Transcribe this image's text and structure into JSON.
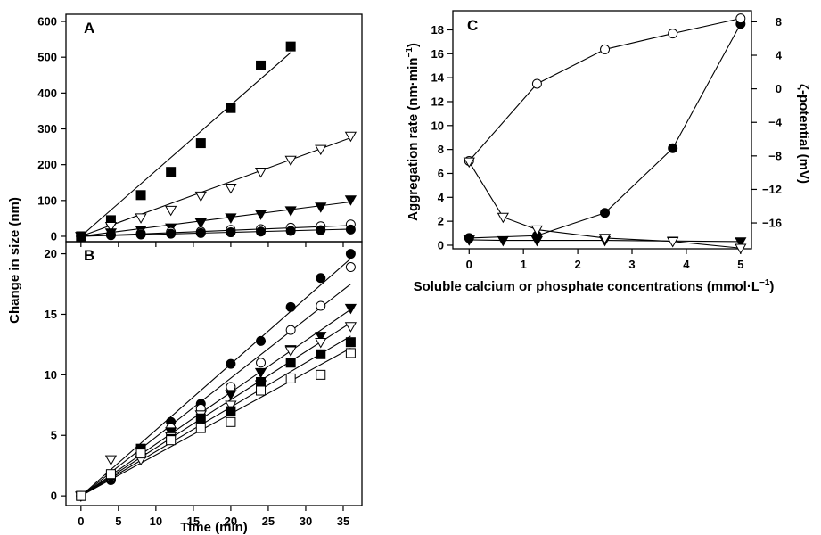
{
  "figure": {
    "panel_a_label": "A",
    "panel_b_label": "B",
    "panel_c_label": "C",
    "shared_ylabel": "Change in size (nm)",
    "shared_xlabel": "Time (min)",
    "c_ylabel_left_main": "Aggregation rate (nm",
    "c_ylabel_left_dot": "·",
    "c_ylabel_left_unit": "min",
    "c_ylabel_left_exp": "−1",
    "c_ylabel_left_close": ")",
    "c_ylabel_right": "ζ-potential (mV)",
    "c_xlabel_main": "Soluble calcium or phosphate concentrations (mmol",
    "c_xlabel_dot": "·",
    "c_xlabel_unit": "L",
    "c_xlabel_exp": "−1",
    "c_xlabel_close": ")"
  },
  "chart_data": [
    {
      "panel": "A",
      "type": "scatter",
      "title": "",
      "xlabel": "",
      "ylabel": "Change in size (nm)",
      "xlim": [
        -2,
        37.5
      ],
      "ylim": [
        -15,
        620
      ],
      "xticks": [
        0,
        5,
        10,
        15,
        20,
        25,
        30,
        35
      ],
      "yticks": [
        0,
        100,
        200,
        300,
        400,
        500,
        600
      ],
      "ytick_labels": [
        "0",
        "100",
        "200",
        "300",
        "400",
        "500",
        "600"
      ],
      "grid": false,
      "series": [
        {
          "marker": "filled-square",
          "x": [
            0,
            4,
            8,
            12,
            16,
            20,
            24,
            28
          ],
          "y": [
            0,
            45,
            115,
            180,
            260,
            358,
            477,
            530
          ],
          "fit": [
            [
              0,
              0
            ],
            [
              28,
              513
            ]
          ]
        },
        {
          "marker": "open-triangle-down",
          "x": [
            0,
            4,
            8,
            12,
            16,
            20,
            24,
            28,
            32,
            36
          ],
          "y": [
            0,
            28,
            52,
            73,
            113,
            135,
            180,
            213,
            243,
            280
          ],
          "fit": [
            [
              0,
              0
            ],
            [
              36,
              275
            ]
          ]
        },
        {
          "marker": "filled-triangle-down",
          "x": [
            0,
            4,
            8,
            12,
            16,
            20,
            24,
            28,
            32,
            36
          ],
          "y": [
            0,
            10,
            18,
            24,
            38,
            52,
            62,
            72,
            82,
            102
          ],
          "fit": [
            [
              0,
              0
            ],
            [
              36,
              96
            ]
          ]
        },
        {
          "marker": "open-circle",
          "x": [
            0,
            4,
            8,
            12,
            16,
            20,
            24,
            28,
            32,
            36
          ],
          "y": [
            0,
            5,
            8,
            12,
            13,
            18,
            20,
            24,
            28,
            33
          ],
          "fit": [
            [
              0,
              0
            ],
            [
              36,
              30
            ]
          ]
        },
        {
          "marker": "filled-circle",
          "x": [
            0,
            4,
            8,
            12,
            16,
            20,
            24,
            28,
            32,
            36
          ],
          "y": [
            0,
            3,
            5,
            7,
            9,
            11,
            13,
            15,
            17,
            19
          ],
          "fit": [
            [
              0,
              0
            ],
            [
              36,
              20
            ]
          ]
        }
      ]
    },
    {
      "panel": "B",
      "type": "scatter",
      "title": "",
      "xlabel": "Time (min)",
      "ylabel": "Change in size (nm)",
      "xlim": [
        -2,
        37.5
      ],
      "ylim": [
        -0.8,
        21
      ],
      "xticks": [
        0,
        5,
        10,
        15,
        20,
        25,
        30,
        35
      ],
      "xtick_labels": [
        "0",
        "5",
        "10",
        "15",
        "20",
        "25",
        "30",
        "35"
      ],
      "yticks": [
        0,
        5,
        10,
        15,
        20
      ],
      "ytick_labels": [
        "0",
        "5",
        "10",
        "15",
        "20"
      ],
      "grid": false,
      "series": [
        {
          "marker": "filled-circle",
          "x": [
            0,
            4,
            8,
            12,
            16,
            20,
            24,
            28,
            32,
            36
          ],
          "y": [
            0,
            1.3,
            3.5,
            6.1,
            7.6,
            10.9,
            12.8,
            15.6,
            18.0,
            20.0
          ],
          "fit": [
            [
              0,
              0
            ],
            [
              36,
              19.6
            ]
          ]
        },
        {
          "marker": "open-circle",
          "x": [
            0,
            4,
            8,
            12,
            16,
            20,
            24,
            28,
            32,
            36
          ],
          "y": [
            0,
            1.5,
            3.8,
            5.6,
            7.2,
            9.0,
            11.0,
            13.7,
            15.7,
            18.9
          ],
          "fit": [
            [
              0,
              0
            ],
            [
              36,
              17.5
            ]
          ]
        },
        {
          "marker": "filled-triangle-down",
          "x": [
            0,
            4,
            8,
            12,
            16,
            20,
            24,
            28,
            32,
            36
          ],
          "y": [
            0,
            1.4,
            3.2,
            5.3,
            6.7,
            8.4,
            10.2,
            12.1,
            13.2,
            15.5
          ],
          "fit": [
            [
              0,
              0
            ],
            [
              36,
              15.4
            ]
          ]
        },
        {
          "marker": "open-triangle-down",
          "x": [
            0,
            4,
            8,
            12,
            16,
            20,
            24,
            28,
            32,
            36
          ],
          "y": [
            0,
            3.0,
            3.0,
            4.9,
            6.7,
            7.5,
            9.2,
            12.0,
            12.7,
            14.0
          ],
          "fit": [
            [
              0,
              0
            ],
            [
              36,
              14.3
            ]
          ]
        },
        {
          "marker": "filled-square",
          "x": [
            0,
            4,
            8,
            12,
            16,
            20,
            24,
            28,
            32,
            36
          ],
          "y": [
            0,
            1.7,
            3.9,
            4.7,
            6.4,
            7.0,
            9.4,
            11.0,
            11.7,
            12.7
          ],
          "fit": [
            [
              0,
              0
            ],
            [
              36,
              13.2
            ]
          ]
        },
        {
          "marker": "open-square",
          "x": [
            0,
            4,
            8,
            12,
            16,
            20,
            24,
            28,
            32,
            36
          ],
          "y": [
            0,
            1.8,
            3.5,
            4.6,
            5.6,
            6.1,
            8.7,
            9.7,
            10.0,
            11.8
          ],
          "fit": [
            [
              0,
              0
            ],
            [
              36,
              12.2
            ]
          ]
        }
      ]
    },
    {
      "panel": "C",
      "type": "line",
      "title": "",
      "xlabel": "Soluble calcium or phosphate concentrations (mmol·L−1)",
      "ylabel": "Aggregation rate (nm·min−1)",
      "y2label": "ζ-potential (mV)",
      "xlim": [
        -0.3,
        5.2
      ],
      "ylim": [
        -0.3,
        19.6
      ],
      "y2lim": [
        -19.08,
        9.32
      ],
      "xticks": [
        0,
        1,
        2,
        3,
        4,
        5
      ],
      "xtick_labels": [
        "0",
        "1",
        "2",
        "3",
        "4",
        "5"
      ],
      "yticks": [
        0,
        2,
        4,
        6,
        8,
        10,
        12,
        14,
        16,
        18
      ],
      "ytick_labels": [
        "0",
        "2",
        "4",
        "6",
        "8",
        "10",
        "12",
        "14",
        "16",
        "18"
      ],
      "y2ticks": [
        -16,
        -12,
        -8,
        -4,
        0,
        4,
        8
      ],
      "y2tick_labels": [
        "−16",
        "−12",
        "−8",
        "−4",
        "0",
        "4",
        "8"
      ],
      "grid": false,
      "series": [
        {
          "marker": "filled-circle",
          "axis": "left",
          "x": [
            0,
            1.25,
            2.5,
            3.75,
            5
          ],
          "y": [
            0.6,
            0.8,
            2.7,
            8.1,
            18.5
          ]
        },
        {
          "marker": "filled-triangle-down",
          "axis": "left",
          "x": [
            0,
            0.625,
            1.25,
            2.5,
            3.75,
            5
          ],
          "y": [
            0.45,
            0.4,
            0.4,
            0.4,
            0.35,
            0.3
          ]
        },
        {
          "marker": "open-circle",
          "axis": "right",
          "x": [
            0,
            1.25,
            2.5,
            3.75,
            5
          ],
          "y": [
            -8.6,
            0.6,
            4.7,
            6.6,
            8.4
          ]
        },
        {
          "marker": "open-triangle-down",
          "axis": "right",
          "x": [
            0,
            0.625,
            1.25,
            2.5,
            3.75,
            5
          ],
          "y": [
            -8.7,
            -15.3,
            -16.8,
            -17.8,
            -18.2,
            -19.0
          ]
        }
      ]
    }
  ]
}
